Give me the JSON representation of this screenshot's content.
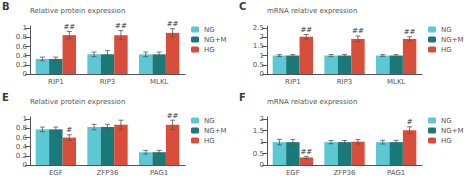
{
  "chart_data": [
    {
      "type": "bar",
      "title": "B",
      "ylabel": "Relative protein expression",
      "categories": [
        "RIP1",
        "RIP3",
        "MLKL"
      ],
      "series": [
        {
          "name": "NG",
          "color": "#5bc8d3",
          "values": [
            0.33,
            0.43,
            0.43
          ],
          "errors": [
            0.04,
            0.05,
            0.05
          ]
        },
        {
          "name": "NG+M",
          "color": "#1a7a7a",
          "values": [
            0.33,
            0.43,
            0.43
          ],
          "errors": [
            0.04,
            0.08,
            0.05
          ]
        },
        {
          "name": "HG",
          "color": "#d94e3a",
          "values": [
            0.85,
            0.85,
            0.9
          ],
          "errors": [
            0.08,
            0.1,
            0.09
          ],
          "annotations": [
            "##",
            "##",
            "##"
          ]
        }
      ],
      "ylim": [
        0,
        1.05
      ],
      "yticks": [
        0,
        0.2,
        0.4,
        0.6,
        0.8,
        1
      ],
      "grid": false,
      "legend": "upper right"
    },
    {
      "type": "bar",
      "title": "C",
      "ylabel": "mRNA relative expression",
      "categories": [
        "RIP1",
        "RIP3",
        "MLKL"
      ],
      "series": [
        {
          "name": "NG",
          "color": "#5bc8d3",
          "values": [
            1.0,
            1.0,
            1.0
          ],
          "errors": [
            0.05,
            0.06,
            0.05
          ]
        },
        {
          "name": "NG+M",
          "color": "#1a7a7a",
          "values": [
            1.0,
            1.0,
            1.0
          ],
          "errors": [
            0.05,
            0.06,
            0.05
          ]
        },
        {
          "name": "HG",
          "color": "#d94e3a",
          "values": [
            2.02,
            1.9,
            1.9
          ],
          "errors": [
            0.12,
            0.16,
            0.12
          ],
          "annotations": [
            "##",
            "##",
            "##"
          ]
        }
      ],
      "ylim": [
        0,
        2.6
      ],
      "yticks": [
        0,
        0.5,
        1,
        1.5,
        2,
        2.5
      ],
      "grid": false,
      "legend": "upper right"
    },
    {
      "type": "bar",
      "title": "E",
      "ylabel": "Relative protein expression",
      "categories": [
        "EGF",
        "ZFP36",
        "PAG1"
      ],
      "series": [
        {
          "name": "NG",
          "color": "#5bc8d3",
          "values": [
            0.78,
            0.83,
            0.28
          ],
          "errors": [
            0.05,
            0.06,
            0.04
          ]
        },
        {
          "name": "NG+M",
          "color": "#1a7a7a",
          "values": [
            0.78,
            0.83,
            0.28
          ],
          "errors": [
            0.05,
            0.06,
            0.04
          ]
        },
        {
          "name": "HG",
          "color": "#d94e3a",
          "values": [
            0.6,
            0.88,
            0.88
          ],
          "errors": [
            0.06,
            0.1,
            0.1
          ],
          "annotations": [
            "#",
            null,
            "##"
          ]
        }
      ],
      "ylim": [
        0,
        1.05
      ],
      "yticks": [
        0,
        0.2,
        0.4,
        0.6,
        0.8,
        1
      ],
      "grid": false,
      "legend": "upper right"
    },
    {
      "type": "bar",
      "title": "F",
      "ylabel": "mRNA relative expression",
      "categories": [
        "EGF",
        "ZFP36",
        "PAG1"
      ],
      "series": [
        {
          "name": "NG",
          "color": "#5bc8d3",
          "values": [
            1.0,
            1.0,
            1.0
          ],
          "errors": [
            0.12,
            0.07,
            0.08
          ]
        },
        {
          "name": "NG+M",
          "color": "#1a7a7a",
          "values": [
            1.0,
            1.0,
            1.0
          ],
          "errors": [
            0.12,
            0.07,
            0.08
          ]
        },
        {
          "name": "HG",
          "color": "#d94e3a",
          "values": [
            0.33,
            1.02,
            1.52
          ],
          "errors": [
            0.05,
            0.1,
            0.15
          ],
          "annotations": [
            "##",
            null,
            "#"
          ]
        }
      ],
      "ylim": [
        0,
        2.1
      ],
      "yticks": [
        0,
        0.5,
        1,
        1.5,
        2
      ],
      "grid": false,
      "legend": "upper right"
    }
  ]
}
